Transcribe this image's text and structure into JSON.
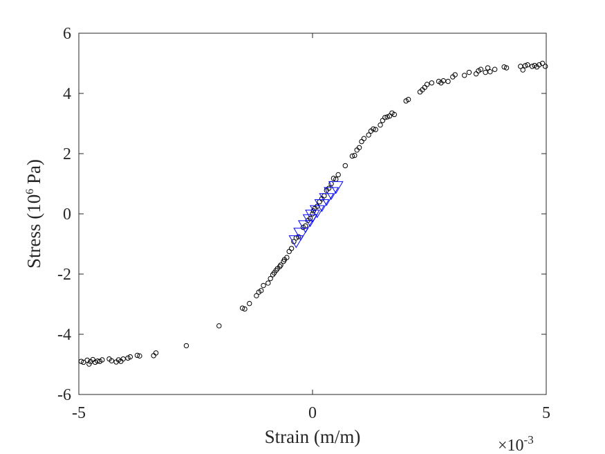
{
  "chart_data": {
    "type": "scatter",
    "title": "",
    "xlabel": "Strain (m/m)",
    "ylabel": {
      "prefix": "Stress (10",
      "sup": "6",
      "suffix": " Pa)"
    },
    "x_multiplier": {
      "base": "×10",
      "exp": "-3"
    },
    "xlim": [
      -5,
      5
    ],
    "ylim": [
      -6,
      6
    ],
    "xticks": [
      -5,
      0,
      5
    ],
    "yticks": [
      -6,
      -4,
      -2,
      0,
      2,
      4,
      6
    ],
    "grid": false,
    "colors": {
      "circles": "#000000",
      "triangles": "#0000ff"
    },
    "series": [
      {
        "marker": "circle",
        "color": "#000000",
        "points": [
          [
            -4.95,
            -4.9
          ],
          [
            -4.9,
            -4.93
          ],
          [
            -4.82,
            -4.86
          ],
          [
            -4.78,
            -4.99
          ],
          [
            -4.75,
            -4.91
          ],
          [
            -4.7,
            -4.84
          ],
          [
            -4.65,
            -4.93
          ],
          [
            -4.6,
            -4.89
          ],
          [
            -4.55,
            -4.9
          ],
          [
            -4.5,
            -4.85
          ],
          [
            -4.35,
            -4.82
          ],
          [
            -4.3,
            -4.88
          ],
          [
            -4.2,
            -4.92
          ],
          [
            -4.15,
            -4.85
          ],
          [
            -4.1,
            -4.9
          ],
          [
            -4.05,
            -4.82
          ],
          [
            -3.95,
            -4.79
          ],
          [
            -3.9,
            -4.75
          ],
          [
            -3.75,
            -4.7
          ],
          [
            -3.7,
            -4.72
          ],
          [
            -3.4,
            -4.71
          ],
          [
            -3.35,
            -4.62
          ],
          [
            -2.7,
            -4.38
          ],
          [
            -2.0,
            -3.72
          ],
          [
            -1.5,
            -3.13
          ],
          [
            -1.45,
            -3.16
          ],
          [
            -1.35,
            -2.98
          ],
          [
            -1.2,
            -2.72
          ],
          [
            -1.15,
            -2.6
          ],
          [
            -1.1,
            -2.55
          ],
          [
            -1.05,
            -2.38
          ],
          [
            -0.95,
            -2.3
          ],
          [
            -0.9,
            -2.15
          ],
          [
            -0.85,
            -2.02
          ],
          [
            -0.82,
            -1.96
          ],
          [
            -0.78,
            -1.88
          ],
          [
            -0.75,
            -1.82
          ],
          [
            -0.7,
            -1.75
          ],
          [
            -0.68,
            -1.7
          ],
          [
            -0.62,
            -1.58
          ],
          [
            -0.6,
            -1.52
          ],
          [
            -0.55,
            -1.45
          ],
          [
            -0.5,
            -1.25
          ],
          [
            -0.45,
            -1.15
          ],
          [
            -0.4,
            -0.92
          ],
          [
            -0.35,
            -0.8
          ],
          [
            -0.3,
            -0.76
          ],
          [
            -0.2,
            -0.45
          ],
          [
            -0.15,
            -0.4
          ],
          [
            -0.1,
            -0.22
          ],
          [
            -0.05,
            -0.15
          ],
          [
            0.0,
            0.0
          ],
          [
            0.02,
            0.1
          ],
          [
            0.05,
            0.18
          ],
          [
            0.1,
            0.25
          ],
          [
            0.15,
            0.4
          ],
          [
            0.2,
            0.5
          ],
          [
            0.25,
            0.6
          ],
          [
            0.3,
            0.78
          ],
          [
            0.35,
            0.85
          ],
          [
            0.4,
            1.0
          ],
          [
            0.45,
            1.18
          ],
          [
            0.5,
            1.15
          ],
          [
            0.55,
            1.3
          ],
          [
            0.7,
            1.6
          ],
          [
            0.85,
            1.92
          ],
          [
            0.9,
            1.94
          ],
          [
            0.95,
            2.12
          ],
          [
            1.0,
            2.2
          ],
          [
            1.05,
            2.4
          ],
          [
            1.1,
            2.5
          ],
          [
            1.2,
            2.62
          ],
          [
            1.25,
            2.75
          ],
          [
            1.3,
            2.82
          ],
          [
            1.35,
            2.8
          ],
          [
            1.45,
            2.95
          ],
          [
            1.5,
            3.1
          ],
          [
            1.55,
            3.2
          ],
          [
            1.6,
            3.22
          ],
          [
            1.65,
            3.25
          ],
          [
            1.7,
            3.35
          ],
          [
            1.75,
            3.3
          ],
          [
            2.0,
            3.75
          ],
          [
            2.05,
            3.8
          ],
          [
            2.3,
            4.05
          ],
          [
            2.35,
            4.12
          ],
          [
            2.4,
            4.2
          ],
          [
            2.45,
            4.3
          ],
          [
            2.55,
            4.35
          ],
          [
            2.7,
            4.4
          ],
          [
            2.75,
            4.35
          ],
          [
            2.8,
            4.42
          ],
          [
            2.9,
            4.4
          ],
          [
            3.0,
            4.55
          ],
          [
            3.05,
            4.62
          ],
          [
            3.25,
            4.6
          ],
          [
            3.35,
            4.7
          ],
          [
            3.5,
            4.65
          ],
          [
            3.55,
            4.75
          ],
          [
            3.6,
            4.8
          ],
          [
            3.7,
            4.7
          ],
          [
            3.75,
            4.85
          ],
          [
            3.8,
            4.72
          ],
          [
            3.9,
            4.8
          ],
          [
            4.1,
            4.88
          ],
          [
            4.15,
            4.85
          ],
          [
            4.45,
            4.9
          ],
          [
            4.5,
            4.78
          ],
          [
            4.55,
            4.92
          ],
          [
            4.6,
            4.95
          ],
          [
            4.7,
            4.9
          ],
          [
            4.75,
            4.93
          ],
          [
            4.8,
            4.88
          ],
          [
            4.85,
            4.95
          ],
          [
            4.92,
            5.0
          ],
          [
            4.98,
            4.9
          ]
        ]
      },
      {
        "marker": "triangle-down",
        "color": "#0000ff",
        "points": [
          [
            -0.35,
            -0.9
          ],
          [
            -0.25,
            -0.65
          ],
          [
            -0.15,
            -0.4
          ],
          [
            -0.05,
            -0.2
          ],
          [
            0.0,
            -0.05
          ],
          [
            0.1,
            0.1
          ],
          [
            0.2,
            0.3
          ],
          [
            0.3,
            0.5
          ],
          [
            0.4,
            0.7
          ],
          [
            0.5,
            0.9
          ]
        ]
      }
    ]
  }
}
